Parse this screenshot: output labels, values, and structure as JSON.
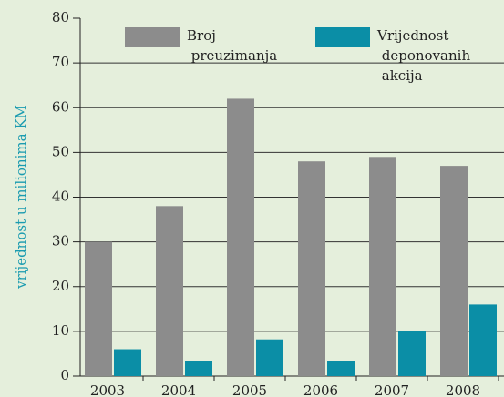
{
  "chart_data": {
    "type": "bar",
    "y_label": "vrijednost u milionima KM",
    "categories": [
      "2003",
      "2004",
      "2005",
      "2006",
      "2007",
      "2008"
    ],
    "series": [
      {
        "name": "Broj preuzimanja",
        "color": "#8c8c8c",
        "values": [
          30,
          38,
          62,
          48,
          49,
          47
        ]
      },
      {
        "name": "Vrijednost deponovanih akcija",
        "color": "#0b8ea6",
        "values": [
          6,
          3.3,
          8.2,
          3.3,
          10,
          16
        ]
      }
    ],
    "ylim": [
      0,
      80
    ],
    "yticks": [
      0,
      10,
      20,
      30,
      40,
      50,
      60,
      70,
      80
    ],
    "grid": true
  }
}
